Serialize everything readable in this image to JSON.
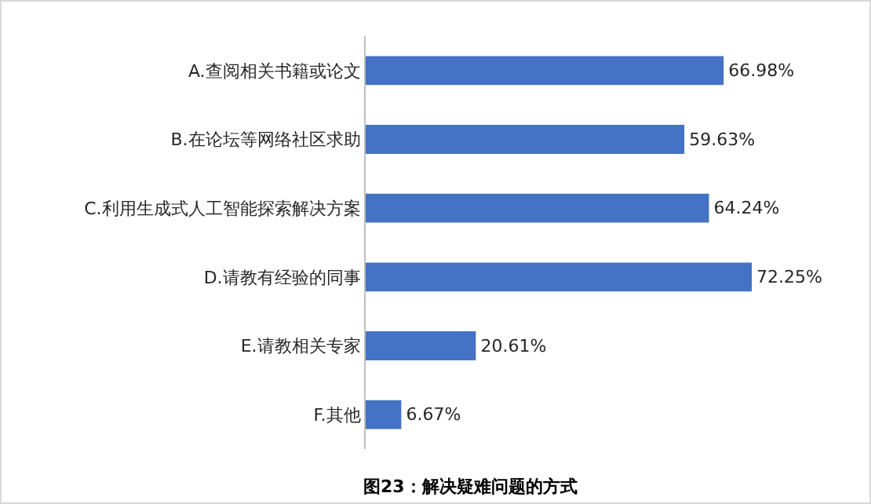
{
  "chart_data": {
    "type": "bar",
    "orientation": "horizontal",
    "title": "图23：解决疑难问题的方式",
    "categories": [
      "A.查阅相关书籍或论文",
      "B.在论坛等网络社区求助",
      "C.利用生成式人工智能探索解决方案",
      "D.请教有经验的同事",
      "E.请教相关专家",
      "F.其他"
    ],
    "values": [
      66.98,
      59.63,
      64.24,
      72.25,
      20.61,
      6.67
    ],
    "value_labels": [
      "66.98%",
      "59.63%",
      "64.24%",
      "72.25%",
      "20.61%",
      "6.67%"
    ],
    "color": "#4472c4",
    "grid": false,
    "legend": false
  }
}
